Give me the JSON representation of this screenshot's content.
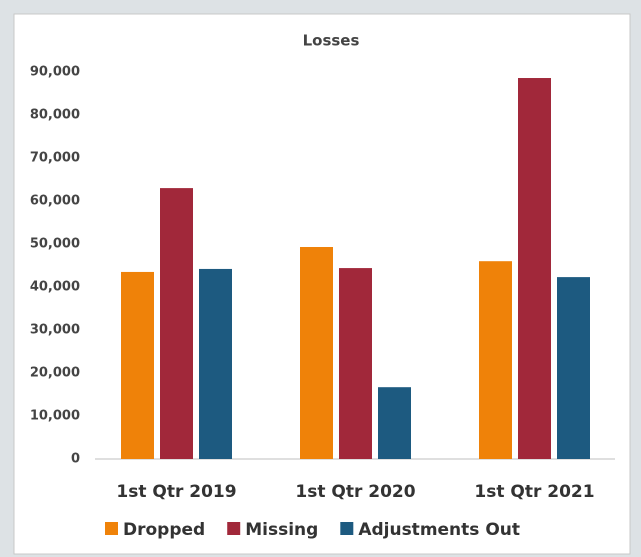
{
  "chart_data": {
    "type": "bar",
    "title": "Losses",
    "categories": [
      "1st Qtr 2019",
      "1st Qtr 2020",
      "1st Qtr 2021"
    ],
    "series": [
      {
        "name": "Dropped",
        "color": "#ef8209",
        "values": [
          43500,
          49300,
          46000
        ]
      },
      {
        "name": "Missing",
        "color": "#a1283a",
        "values": [
          63000,
          44400,
          88600
        ]
      },
      {
        "name": "Adjustments Out",
        "color": "#1d5a80",
        "values": [
          44200,
          16700,
          42300
        ]
      }
    ],
    "ylim": [
      0,
      90000
    ],
    "yticks": [
      0,
      {
        "value": 10000,
        "label": "10,000"
      },
      {
        "value": 20000,
        "label": "20,000"
      },
      {
        "value": 30000,
        "label": "30,000"
      },
      {
        "value": 40000,
        "label": "40,000"
      },
      {
        "value": 50000,
        "label": "50,000"
      },
      {
        "value": 60000,
        "label": "60,000"
      },
      {
        "value": 70000,
        "label": "70,000"
      },
      {
        "value": 80000,
        "label": "80,000"
      },
      {
        "value": 90000,
        "label": "90,000"
      }
    ],
    "grid": false,
    "legend": "bottom"
  }
}
